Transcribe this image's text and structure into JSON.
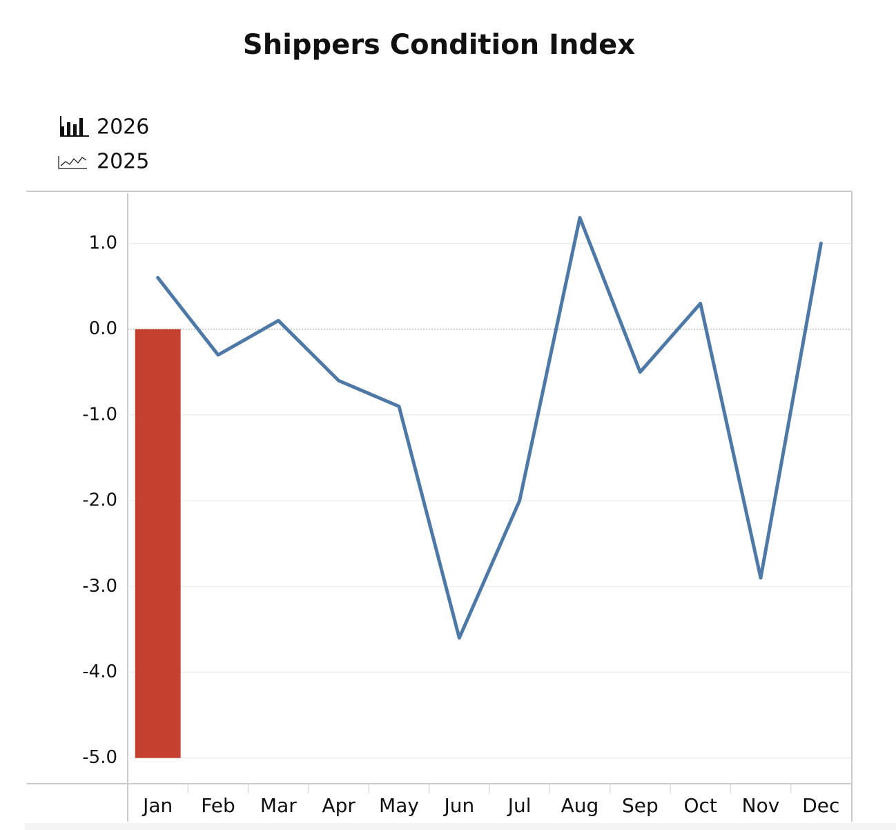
{
  "chart_data": {
    "type": "bar-line",
    "title": "Shippers Condition Index",
    "categories": [
      "Jan",
      "Feb",
      "Mar",
      "Apr",
      "May",
      "Jun",
      "Jul",
      "Aug",
      "Sep",
      "Oct",
      "Nov",
      "Dec"
    ],
    "series": [
      {
        "name": "2026",
        "type": "bar",
        "color": "#c44130",
        "values": [
          -5.0,
          null,
          null,
          null,
          null,
          null,
          null,
          null,
          null,
          null,
          null,
          null
        ]
      },
      {
        "name": "2025",
        "type": "line",
        "color": "#4e79a7",
        "values": [
          0.6,
          -0.3,
          0.1,
          -0.6,
          -0.9,
          -3.6,
          -2.0,
          1.3,
          -0.5,
          0.3,
          -2.9,
          1.0
        ]
      }
    ],
    "ylim": [
      -5.3,
      1.6
    ],
    "yticks": [
      {
        "value": 1,
        "label": "1.0"
      },
      {
        "value": 0,
        "label": "0.0"
      },
      {
        "value": -1,
        "label": "-1.0"
      },
      {
        "value": -2,
        "label": "-2.0"
      },
      {
        "value": -3,
        "label": "-3.0"
      },
      {
        "value": -4,
        "label": "-4.0"
      },
      {
        "value": -5,
        "label": "-5.0"
      }
    ],
    "grid": true
  }
}
